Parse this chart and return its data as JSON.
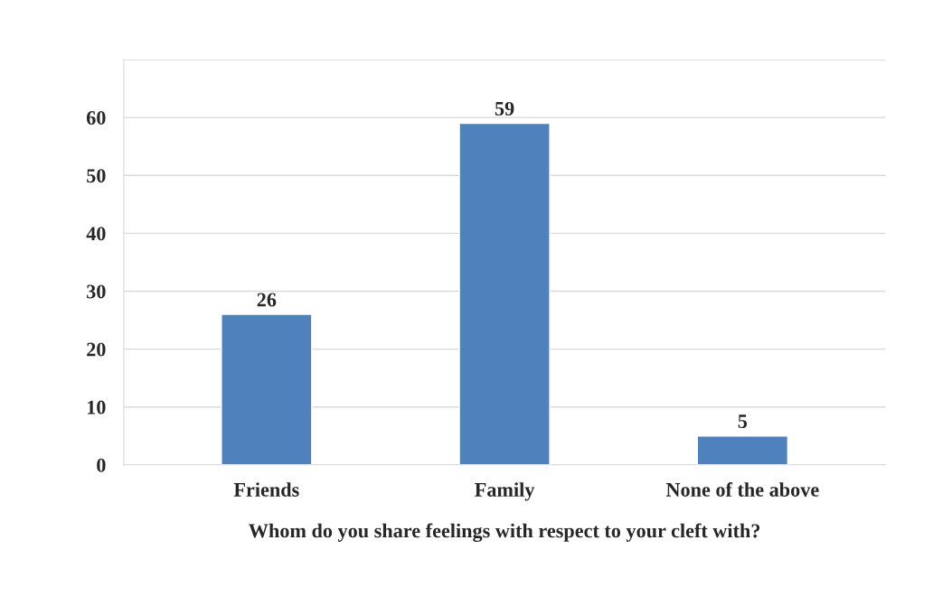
{
  "chart_data": {
    "type": "bar",
    "xlabel": "Whom do you share feelings with respect to your cleft with?",
    "categories": [
      "Friends",
      "Family",
      "None of the above"
    ],
    "values": [
      26,
      59,
      5
    ],
    "color": "#4f81bd",
    "ylim": [
      0,
      70
    ],
    "yticks": [
      0,
      10,
      20,
      30,
      40,
      50,
      60,
      {
        "value": 70,
        "label": null
      }
    ],
    "grid": "y",
    "data_labels": true
  }
}
